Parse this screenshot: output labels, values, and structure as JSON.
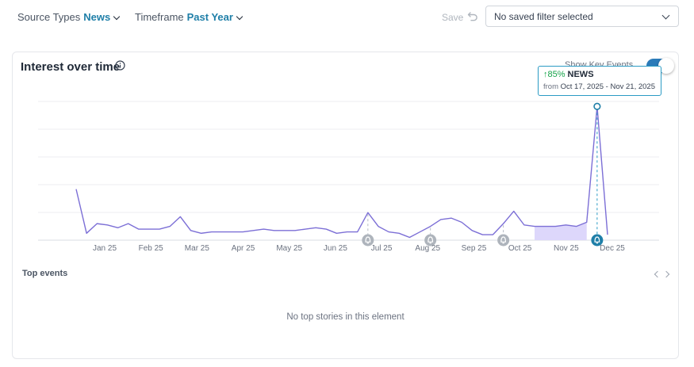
{
  "filters": {
    "source_types": {
      "label": "Source Types",
      "value": "News"
    },
    "timeframe": {
      "label": "Timeframe",
      "value": "Past Year"
    }
  },
  "toolbar": {
    "save_label": "Save",
    "undo_icon": "undo-icon"
  },
  "saved_filter": {
    "value": "No saved filter selected"
  },
  "card": {
    "title": "Interest over time",
    "info_icon": "info-icon",
    "key_events_label": "Show Key Events",
    "key_events_on": true
  },
  "tooltip": {
    "arrow": "↑",
    "percent": "85%",
    "series": "NEWS",
    "from_label": "from",
    "range": "Oct 17, 2025 - Nov 21, 2025"
  },
  "chart_data": {
    "type": "line",
    "x_tick_labels": [
      "Jan 25",
      "Feb 25",
      "Mar 25",
      "Apr 25",
      "May 25",
      "Jun 25",
      "Jul 25",
      "Aug 25",
      "Sep 25",
      "Oct 25",
      "Nov 25",
      "Dec 25"
    ],
    "series": [
      {
        "values": [
          37,
          5,
          12,
          11,
          9,
          12,
          8,
          8,
          8,
          10,
          17,
          7,
          5,
          6,
          6,
          6,
          6,
          7,
          8,
          7,
          7,
          7,
          8,
          9,
          8,
          5,
          6,
          6,
          20,
          10,
          6,
          5,
          2,
          6,
          10,
          15,
          16,
          13,
          7,
          4,
          4,
          12,
          21,
          11,
          10,
          10,
          10,
          11,
          10,
          13,
          97,
          4
        ]
      }
    ],
    "ylim": [
      0,
      100
    ],
    "highlight_range": {
      "start_index": 44,
      "end_index": 49
    },
    "key_event_indices": [
      28,
      34,
      41,
      50
    ],
    "hovered_index": 50,
    "grid": true,
    "accent_color": "#7c6fd6",
    "highlight_fill": "#ddd7fb"
  },
  "top_events": {
    "title": "Top events",
    "empty_message": "No top stories in this element"
  }
}
